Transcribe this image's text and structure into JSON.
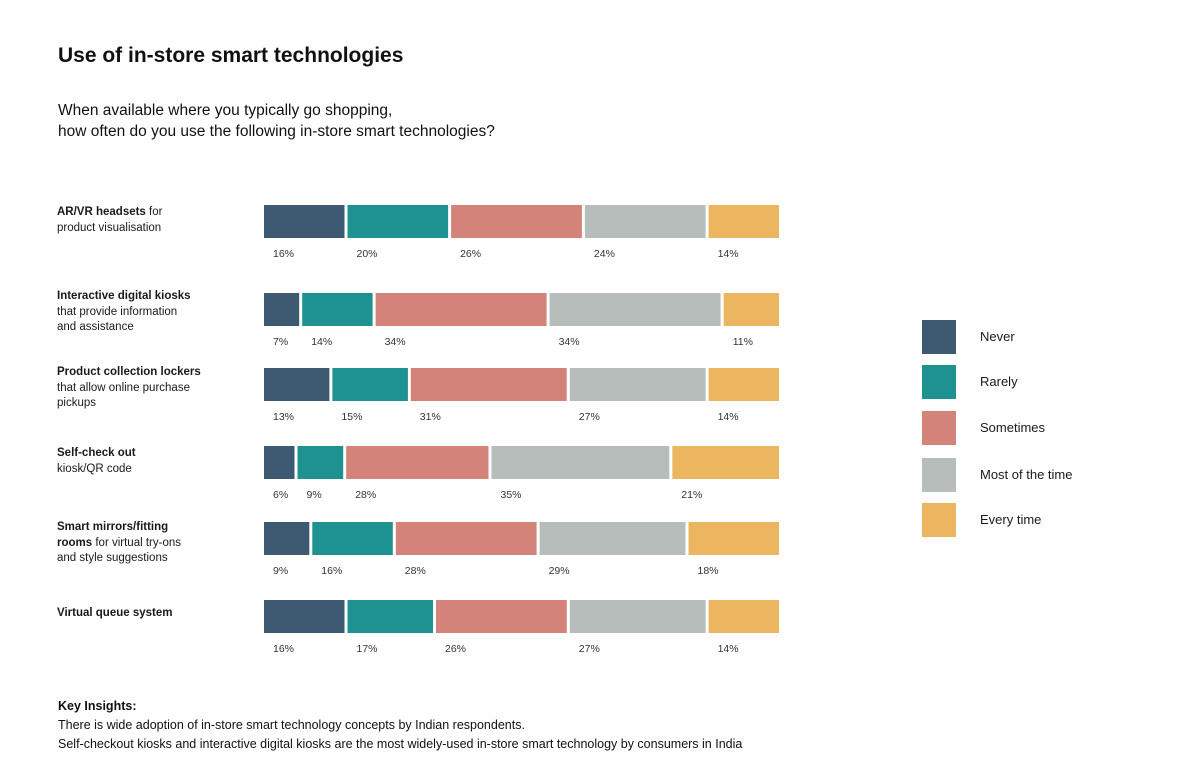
{
  "header": {
    "title": "Use of in-store smart technologies",
    "subtitle_line1": "When available where you typically go shopping,",
    "subtitle_line2": "how often do you use the following in-store smart technologies?"
  },
  "colors": {
    "Never": "#3e5a72",
    "Rarely": "#1e9290",
    "Sometimes": "#d4837a",
    "Most of the time": "#b7bdbb",
    "Every time": "#ebb65f"
  },
  "chart_data": {
    "type": "bar",
    "orientation": "horizontal",
    "stacked": true,
    "normalized": true,
    "categories": [
      "AR/VR headsets for product visualisation",
      "Interactive digital kiosks that provide information and assistance",
      "Product collection lockers that allow online purchase pickups",
      "Self-check out kiosk/QR code",
      "Smart mirrors/fitting rooms for virtual try-ons and style suggestions",
      "Virtual queue system"
    ],
    "series": [
      {
        "name": "Never",
        "values": [
          16,
          7,
          13,
          6,
          9,
          16
        ]
      },
      {
        "name": "Rarely",
        "values": [
          20,
          14,
          15,
          9,
          16,
          17
        ]
      },
      {
        "name": "Sometimes",
        "values": [
          26,
          34,
          31,
          28,
          28,
          26
        ]
      },
      {
        "name": "Most of the time",
        "values": [
          24,
          34,
          27,
          35,
          29,
          27
        ]
      },
      {
        "name": "Every time",
        "values": [
          14,
          11,
          14,
          21,
          18,
          14
        ]
      }
    ],
    "value_suffix": "%",
    "legend_position": "right"
  },
  "rows": [
    {
      "bold": "AR/VR headsets",
      "rest_inline": " for",
      "line2": "product visualisation",
      "line3": ""
    },
    {
      "bold": "Interactive digital kiosks",
      "rest_inline": "",
      "line2": "that provide information",
      "line3": "and assistance"
    },
    {
      "bold": "Product collection lockers",
      "rest_inline": "",
      "line2": "that allow online purchase",
      "line3": "pickups"
    },
    {
      "bold": "Self-check out",
      "rest_inline": "",
      "line2": "kiosk/QR code",
      "line3": ""
    },
    {
      "bold": "Smart mirrors/fitting",
      "rest_inline": "",
      "line2_bold": "rooms",
      "line2": " for virtual try-ons",
      "line3": "and style suggestions"
    },
    {
      "bold": "Virtual queue system",
      "rest_inline": "",
      "line2": "",
      "line3": ""
    }
  ],
  "legend": [
    {
      "label": "Never",
      "color": "#3e5a72"
    },
    {
      "label": "Rarely",
      "color": "#1e9290"
    },
    {
      "label": "Sometimes",
      "color": "#d4837a"
    },
    {
      "label": "Most of the time",
      "color": "#b7bdbb"
    },
    {
      "label": "Every time",
      "color": "#ebb65f"
    }
  ],
  "insights": {
    "label": "Key Insights:",
    "line1": " There is wide adoption of  in-store smart technology concepts by Indian respondents.",
    "line2": "Self-checkout kiosks and interactive digital kiosks are the most widely-used in-store smart technology by consumers in India"
  }
}
